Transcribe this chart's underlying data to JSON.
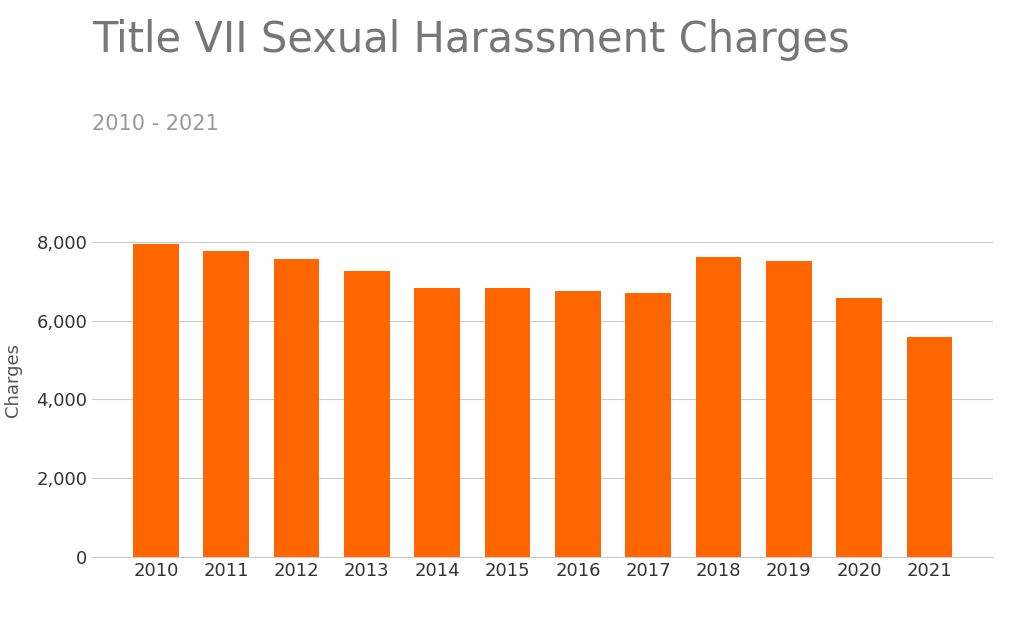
{
  "title": "Title VII Sexual Harassment Charges",
  "subtitle": "2010 - 2021",
  "ylabel": "Charges",
  "years": [
    2010,
    2011,
    2012,
    2013,
    2014,
    2015,
    2016,
    2017,
    2018,
    2019,
    2020,
    2021
  ],
  "values": [
    7960,
    7780,
    7570,
    7250,
    6840,
    6840,
    6758,
    6696,
    7609,
    7514,
    6587,
    5581
  ],
  "bar_color": "#FF6600",
  "background_color": "#ffffff",
  "ylim": [
    0,
    9000
  ],
  "yticks": [
    0,
    2000,
    4000,
    6000,
    8000
  ],
  "title_fontsize": 30,
  "subtitle_fontsize": 15,
  "ylabel_fontsize": 13,
  "tick_fontsize": 13,
  "grid_color": "#cccccc",
  "title_color": "#777777",
  "subtitle_color": "#999999",
  "tick_label_color": "#333333",
  "ylabel_color": "#555555"
}
